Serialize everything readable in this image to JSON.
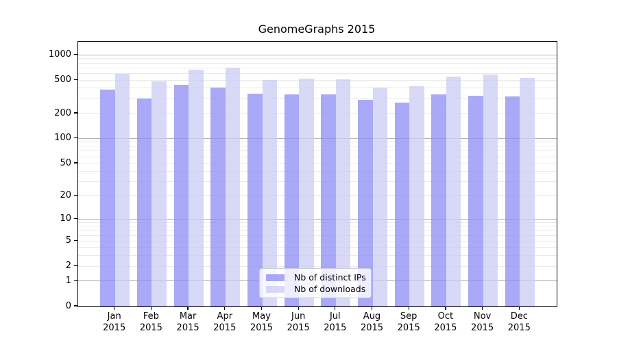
{
  "chart_data": {
    "type": "bar",
    "title": "GenomeGraphs 2015",
    "categories": [
      "Jan",
      "Feb",
      "Mar",
      "Apr",
      "May",
      "Jun",
      "Jul",
      "Aug",
      "Sep",
      "Oct",
      "Nov",
      "Dec"
    ],
    "x_year_label": "2015",
    "series": [
      {
        "name": "Nb of distinct IPs",
        "color": "rgba(140,140,244,0.75)",
        "color_hex_displayed": "#a9a9f7",
        "values": [
          385,
          302,
          445,
          411,
          347,
          343,
          341,
          292,
          270,
          343,
          330,
          320
        ]
      },
      {
        "name": "Nb of downloads",
        "color": "rgba(203,203,244,0.75)",
        "color_hex_displayed": "#d8d8f7",
        "values": [
          595,
          487,
          675,
          710,
          505,
          522,
          515,
          410,
          430,
          556,
          590,
          540
        ]
      }
    ],
    "y_ticks": [
      1000,
      500,
      200,
      100,
      50,
      20,
      10,
      5,
      2,
      1,
      0
    ],
    "y_scale": "log1p",
    "ylim": [
      0,
      1430
    ],
    "grid": "on",
    "grid_minor_color": "#e9e9e9",
    "grid_major_color": "#b4b4b4",
    "legend_position": "lower center"
  }
}
